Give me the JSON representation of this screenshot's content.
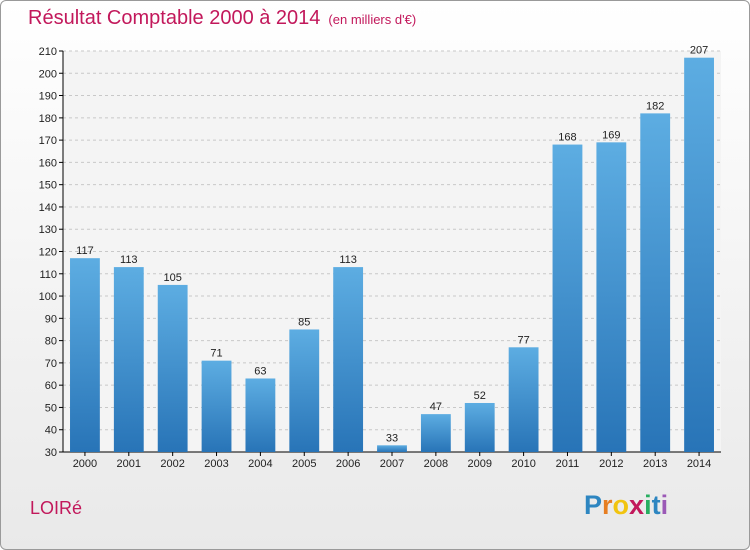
{
  "title": "Résultat Comptable 2000 à 2014",
  "subtitle": "(en milliers d'€)",
  "commune": "LOIRé",
  "logo": {
    "letters": [
      "P",
      "r",
      "o",
      "x",
      "i",
      "t",
      "i"
    ],
    "colors": [
      "#2e86c1",
      "#e67e22",
      "#f1c40f",
      "#c2185b",
      "#27ae60",
      "#2e86c1",
      "#9b59b6"
    ]
  },
  "colors": {
    "title": "#c2185b",
    "bar_light": "#5dade2",
    "bar_dark": "#2874b7",
    "grid": "#c8c8c8",
    "axis": "#000000"
  },
  "chart_data": {
    "type": "bar",
    "categories": [
      "2000",
      "2001",
      "2002",
      "2003",
      "2004",
      "2005",
      "2006",
      "2007",
      "2008",
      "2009",
      "2010",
      "2011",
      "2012",
      "2013",
      "2014"
    ],
    "values": [
      117,
      113,
      105,
      71,
      63,
      85,
      113,
      33,
      47,
      52,
      77,
      168,
      169,
      182,
      207
    ],
    "ylim": [
      30,
      210
    ],
    "yticks": [
      30,
      40,
      50,
      60,
      70,
      80,
      90,
      100,
      110,
      120,
      130,
      140,
      150,
      160,
      170,
      180,
      190,
      200,
      210
    ],
    "grid": true
  }
}
